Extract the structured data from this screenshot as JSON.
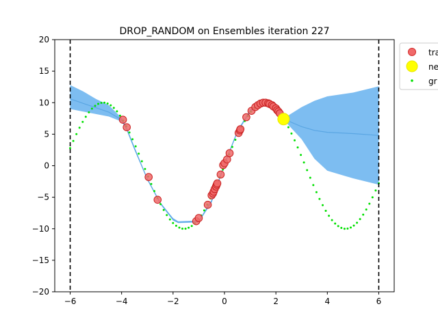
{
  "chart_data": {
    "type": "scatter",
    "title": "DROP_RANDOM on Ensembles iteration 227",
    "xlim": [
      -6.6,
      6.6
    ],
    "ylim": [
      -20,
      20
    ],
    "xticks": [
      -6,
      -4,
      -2,
      0,
      2,
      4,
      6
    ],
    "yticks": [
      -20,
      -15,
      -10,
      -5,
      0,
      5,
      10,
      15,
      20
    ],
    "x_bounds": [
      -6,
      6
    ],
    "legend": {
      "placement": "top-right",
      "entries": [
        {
          "label": "tra",
          "marker": "circle-red"
        },
        {
          "label": "ne",
          "marker": "circle-yellow"
        },
        {
          "label": "gr",
          "marker": "dot-green"
        }
      ]
    },
    "band": {
      "x": [
        -6.0,
        -5.5,
        -5.0,
        -4.5,
        -4.0,
        -3.8,
        -3.5,
        -3.0,
        -2.5,
        -2.0,
        -1.8,
        -1.0,
        -0.5,
        0.0,
        0.5,
        1.0,
        1.5,
        2.0,
        2.3,
        3.0,
        3.5,
        4.0,
        5.0,
        6.0
      ],
      "upper": [
        12.8,
        11.8,
        10.6,
        9.6,
        7.6,
        6.1,
        3.0,
        -2.0,
        -5.8,
        -8.3,
        -8.8,
        -8.7,
        -5.4,
        0.4,
        5.6,
        8.9,
        10.3,
        9.3,
        7.5,
        9.3,
        10.3,
        11.0,
        11.6,
        12.6
      ],
      "lower": [
        9.0,
        8.6,
        8.2,
        7.8,
        7.0,
        5.6,
        2.5,
        -2.3,
        -6.1,
        -8.7,
        -9.1,
        -9.0,
        -5.9,
        0.0,
        5.2,
        8.5,
        9.9,
        8.9,
        7.3,
        4.2,
        1.1,
        -0.8,
        -2.0,
        -3.0
      ],
      "mean": [
        10.6,
        9.9,
        9.2,
        8.5,
        7.3,
        5.8,
        2.7,
        -2.1,
        -5.9,
        -8.5,
        -9.0,
        -8.8,
        -5.6,
        0.2,
        5.4,
        8.7,
        10.1,
        9.1,
        7.4,
        6.2,
        5.6,
        5.3,
        5.1,
        4.8
      ]
    },
    "ground_truth_function": "10*sin(x)",
    "ground_truth_x_range": [
      -6,
      6
    ],
    "series": [
      {
        "name": "tra",
        "x": [
          -3.95,
          -3.8,
          -2.95,
          -2.6,
          -1.1,
          -1.0,
          -0.65,
          -0.5,
          -0.45,
          -0.42,
          -0.38,
          -0.33,
          -0.3,
          -0.28,
          -0.15,
          -0.05,
          0.0,
          0.1,
          0.2,
          0.55,
          0.6,
          0.62,
          0.85,
          1.05,
          1.2,
          1.3,
          1.4,
          1.5,
          1.6,
          1.7,
          1.75,
          1.85,
          1.9,
          2.0,
          2.05,
          2.1,
          2.15
        ],
        "y": [
          7.3,
          6.1,
          -1.8,
          -5.4,
          -8.8,
          -8.3,
          -6.2,
          -4.7,
          -4.4,
          -4.1,
          -3.7,
          -3.3,
          -3.0,
          -2.8,
          -1.4,
          0.1,
          0.4,
          1.0,
          2.0,
          5.2,
          5.6,
          5.8,
          7.7,
          8.7,
          9.3,
          9.6,
          9.85,
          10.0,
          10.0,
          9.9,
          9.8,
          9.6,
          9.4,
          9.1,
          8.8,
          8.6,
          8.3
        ]
      },
      {
        "name": "ne",
        "x": [
          2.3
        ],
        "y": [
          7.4
        ]
      }
    ]
  }
}
